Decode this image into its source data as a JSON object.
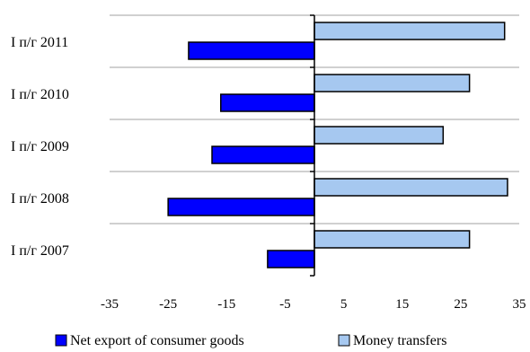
{
  "chart_data": {
    "type": "bar",
    "orientation": "horizontal",
    "categories": [
      "I п/г 2011",
      "I п/г 2010",
      "I п/г 2009",
      "I п/г 2008",
      "I п/г 2007"
    ],
    "series": [
      {
        "name": "Net export of consumer goods",
        "color": "#0000ff",
        "values": [
          -21.5,
          -16,
          -17.5,
          -25,
          -8
        ]
      },
      {
        "name": "Money transfers",
        "color": "#a6c8f0",
        "values": [
          32.5,
          26.5,
          22,
          33,
          26.5
        ]
      }
    ],
    "xlim": [
      -35,
      35
    ],
    "xticks": [
      -35,
      -25,
      -15,
      -5,
      5,
      15,
      25,
      35
    ],
    "grid": true,
    "legend_position": "bottom",
    "title": "",
    "xlabel": "",
    "ylabel": ""
  }
}
